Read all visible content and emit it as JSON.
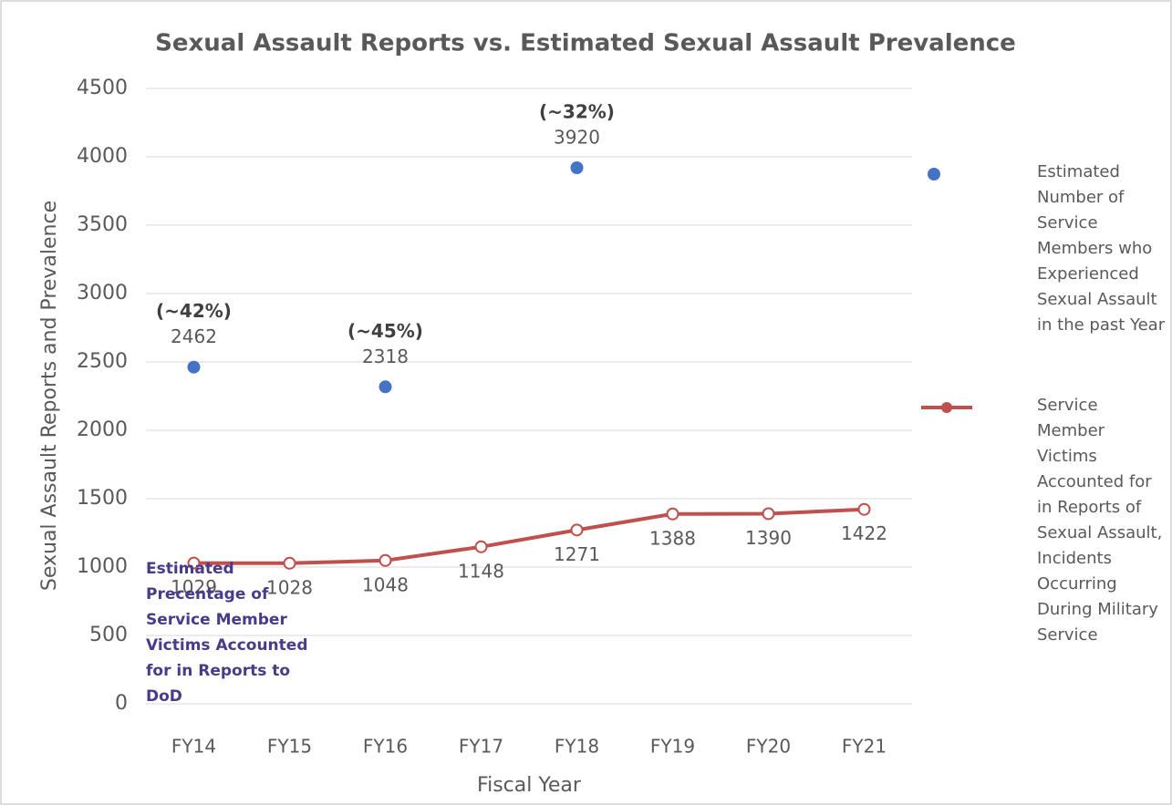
{
  "chart_data": {
    "type": "line",
    "title": "Sexual Assault Reports vs. Estimated Sexual Assault Prevalence",
    "x_label": "Fiscal Year",
    "y_label": "Sexual Assault Reports and Prevalence",
    "categories": [
      "FY14",
      "FY15",
      "FY16",
      "FY17",
      "FY18",
      "FY19",
      "FY20",
      "FY21"
    ],
    "series": [
      {
        "name": "Estimated Number of Service Members who Experienced Sexual Assault in the past Year",
        "color": "#4472c4",
        "marker": "dot",
        "values": [
          2462,
          null,
          2318,
          null,
          3920,
          null,
          null,
          null
        ],
        "annotations": [
          "(~42%)",
          null,
          "(~45%)",
          null,
          "(~32%)",
          null,
          null,
          null
        ]
      },
      {
        "name": "Service Member Victims Accounted for in Reports of Sexual Assault, Incidents Occurring During Military Service",
        "color": "#c0504d",
        "marker": "line",
        "values": [
          1029,
          1028,
          1048,
          1148,
          1271,
          1388,
          1390,
          1422
        ]
      }
    ],
    "note": "Estimated Precentage of Service Member Victims Accounted for in Reports to DoD",
    "ylim": [
      0,
      4500
    ],
    "yticks": [
      0,
      500,
      1000,
      1500,
      2000,
      2500,
      3000,
      3500,
      4000,
      4500
    ],
    "grid": true
  }
}
